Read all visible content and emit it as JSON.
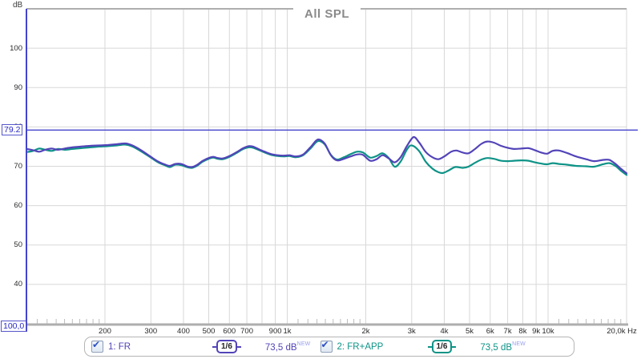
{
  "title": "All SPL",
  "colors": {
    "trace1": "#5244b8",
    "trace2": "#0e9387",
    "cursor": "#4444cf",
    "grid": "#d8d8d8",
    "minor_tick": "#bdbdbd",
    "border": "#aeaeae",
    "title_text": "#8a8a8a",
    "axis_text": "#2b2b2b",
    "new_flag": "#98a0ea"
  },
  "y_axis": {
    "unit": "dB",
    "ticks": [
      {
        "db": 100,
        "text": "100"
      },
      {
        "db": 90,
        "text": "90"
      },
      {
        "db": 80,
        "text": "80"
      },
      {
        "db": 70,
        "text": "70"
      },
      {
        "db": 60,
        "text": "60"
      },
      {
        "db": 50,
        "text": "50"
      },
      {
        "db": 40,
        "text": "40"
      }
    ]
  },
  "x_axis": {
    "ticks": [
      {
        "f": 200,
        "text": "200"
      },
      {
        "f": 300,
        "text": "300"
      },
      {
        "f": 400,
        "text": "400"
      },
      {
        "f": 500,
        "text": "500"
      },
      {
        "f": 600,
        "text": "600"
      },
      {
        "f": 700,
        "text": "700"
      },
      {
        "f": 900,
        "text": "900"
      },
      {
        "f": 1000,
        "text": "1k"
      },
      {
        "f": 2000,
        "text": "2k"
      },
      {
        "f": 3000,
        "text": "3k"
      },
      {
        "f": 4000,
        "text": "4k"
      },
      {
        "f": 5000,
        "text": "5k"
      },
      {
        "f": 6000,
        "text": "6k"
      },
      {
        "f": 7000,
        "text": "7k"
      },
      {
        "f": 8000,
        "text": "8k"
      },
      {
        "f": 9000,
        "text": "9k"
      },
      {
        "f": 10000,
        "text": "10k"
      },
      {
        "f": 20000,
        "text": "20,0k Hz"
      }
    ]
  },
  "cursor": {
    "level_label": "79.2",
    "freq_label": "100,0",
    "level_db": 79.2,
    "freq_hz": 100
  },
  "legend": {
    "entries": [
      {
        "label": "1: FR",
        "smoothing": "1/6",
        "value": "73,5 dB",
        "flag": "NEW",
        "color": "#5244b8",
        "checked": true
      },
      {
        "label": "2: FR+APP",
        "smoothing": "1/6",
        "value": "73,5 dB",
        "flag": "NEW",
        "color": "#0e9387",
        "checked": true
      }
    ]
  },
  "chart_data": {
    "type": "line",
    "xscale": "log",
    "xlabel": "Hz",
    "ylabel": "dB",
    "xlim": [
      100,
      20000
    ],
    "ylim": [
      30,
      110
    ],
    "grid": true,
    "x_gridlines": [
      200,
      300,
      400,
      500,
      600,
      700,
      800,
      900,
      1000,
      2000,
      3000,
      4000,
      5000,
      6000,
      7000,
      8000,
      9000,
      10000,
      20000
    ],
    "y_gridlines": [
      40,
      50,
      60,
      70,
      80,
      90,
      100
    ],
    "series": [
      {
        "name": "1: FR",
        "color": "#5244b8",
        "points": [
          [
            100,
            74.4
          ],
          [
            106,
            74.1
          ],
          [
            112,
            73.7
          ],
          [
            118,
            74.2
          ],
          [
            125,
            74.5
          ],
          [
            132,
            74.2
          ],
          [
            140,
            74.5
          ],
          [
            150,
            74.8
          ],
          [
            162,
            75.0
          ],
          [
            175,
            75.2
          ],
          [
            190,
            75.3
          ],
          [
            205,
            75.4
          ],
          [
            222,
            75.6
          ],
          [
            240,
            75.8
          ],
          [
            255,
            75.3
          ],
          [
            275,
            74.1
          ],
          [
            300,
            72.4
          ],
          [
            320,
            71.2
          ],
          [
            338,
            70.5
          ],
          [
            355,
            70.1
          ],
          [
            372,
            70.6
          ],
          [
            392,
            70.6
          ],
          [
            412,
            70.0
          ],
          [
            430,
            69.8
          ],
          [
            450,
            70.3
          ],
          [
            472,
            71.3
          ],
          [
            500,
            72.1
          ],
          [
            520,
            72.4
          ],
          [
            542,
            72.1
          ],
          [
            565,
            72.0
          ],
          [
            600,
            72.6
          ],
          [
            640,
            73.6
          ],
          [
            678,
            74.6
          ],
          [
            710,
            75.1
          ],
          [
            740,
            75.0
          ],
          [
            780,
            74.3
          ],
          [
            820,
            73.7
          ],
          [
            868,
            73.1
          ],
          [
            920,
            72.8
          ],
          [
            970,
            72.7
          ],
          [
            1020,
            72.8
          ],
          [
            1080,
            72.5
          ],
          [
            1150,
            73.0
          ],
          [
            1230,
            74.9
          ],
          [
            1310,
            76.8
          ],
          [
            1390,
            75.8
          ],
          [
            1470,
            72.8
          ],
          [
            1550,
            71.5
          ],
          [
            1650,
            71.9
          ],
          [
            1750,
            72.5
          ],
          [
            1850,
            73.0
          ],
          [
            1950,
            72.9
          ],
          [
            2080,
            71.4
          ],
          [
            2200,
            71.8
          ],
          [
            2320,
            72.8
          ],
          [
            2450,
            72.0
          ],
          [
            2580,
            71.0
          ],
          [
            2720,
            72.3
          ],
          [
            2880,
            75.2
          ],
          [
            3050,
            77.4
          ],
          [
            3200,
            76.1
          ],
          [
            3400,
            73.6
          ],
          [
            3600,
            72.3
          ],
          [
            3800,
            71.8
          ],
          [
            4000,
            72.5
          ],
          [
            4250,
            73.7
          ],
          [
            4450,
            74.0
          ],
          [
            4700,
            73.5
          ],
          [
            4950,
            73.3
          ],
          [
            5250,
            74.4
          ],
          [
            5550,
            75.7
          ],
          [
            5850,
            76.3
          ],
          [
            6200,
            76.0
          ],
          [
            6600,
            75.2
          ],
          [
            7000,
            74.7
          ],
          [
            7400,
            74.4
          ],
          [
            7900,
            74.5
          ],
          [
            8400,
            74.6
          ],
          [
            8900,
            74.1
          ],
          [
            9400,
            73.5
          ],
          [
            9900,
            73.2
          ],
          [
            10400,
            73.9
          ],
          [
            11000,
            74.0
          ],
          [
            11800,
            73.4
          ],
          [
            12800,
            72.5
          ],
          [
            14000,
            71.8
          ],
          [
            15000,
            71.3
          ],
          [
            16200,
            71.6
          ],
          [
            17200,
            71.6
          ],
          [
            18200,
            70.5
          ],
          [
            19000,
            69.4
          ],
          [
            20000,
            68.2
          ]
        ]
      },
      {
        "name": "2: FR+APP",
        "color": "#0e9387",
        "points": [
          [
            100,
            73.6
          ],
          [
            106,
            73.9
          ],
          [
            112,
            74.5
          ],
          [
            118,
            74.2
          ],
          [
            125,
            73.9
          ],
          [
            132,
            74.4
          ],
          [
            140,
            74.2
          ],
          [
            150,
            74.4
          ],
          [
            162,
            74.6
          ],
          [
            175,
            74.8
          ],
          [
            190,
            75.0
          ],
          [
            205,
            75.1
          ],
          [
            222,
            75.3
          ],
          [
            240,
            75.5
          ],
          [
            255,
            75.0
          ],
          [
            275,
            73.8
          ],
          [
            300,
            72.2
          ],
          [
            320,
            71.0
          ],
          [
            338,
            70.3
          ],
          [
            355,
            69.8
          ],
          [
            372,
            70.4
          ],
          [
            392,
            70.3
          ],
          [
            412,
            69.8
          ],
          [
            430,
            69.6
          ],
          [
            450,
            70.1
          ],
          [
            472,
            71.1
          ],
          [
            500,
            71.9
          ],
          [
            520,
            72.2
          ],
          [
            542,
            71.9
          ],
          [
            565,
            71.8
          ],
          [
            600,
            72.4
          ],
          [
            640,
            73.4
          ],
          [
            678,
            74.4
          ],
          [
            710,
            74.8
          ],
          [
            740,
            74.7
          ],
          [
            780,
            74.1
          ],
          [
            820,
            73.5
          ],
          [
            868,
            72.9
          ],
          [
            920,
            72.6
          ],
          [
            970,
            72.5
          ],
          [
            1020,
            72.6
          ],
          [
            1080,
            72.3
          ],
          [
            1150,
            72.8
          ],
          [
            1230,
            74.6
          ],
          [
            1310,
            76.4
          ],
          [
            1390,
            75.6
          ],
          [
            1470,
            72.9
          ],
          [
            1550,
            71.7
          ],
          [
            1650,
            72.3
          ],
          [
            1750,
            73.1
          ],
          [
            1850,
            73.7
          ],
          [
            1950,
            73.5
          ],
          [
            2080,
            72.2
          ],
          [
            2200,
            72.6
          ],
          [
            2320,
            73.3
          ],
          [
            2450,
            72.1
          ],
          [
            2580,
            69.9
          ],
          [
            2720,
            71.2
          ],
          [
            2880,
            74.3
          ],
          [
            3000,
            75.3
          ],
          [
            3200,
            73.9
          ],
          [
            3400,
            71.1
          ],
          [
            3600,
            69.4
          ],
          [
            3800,
            68.5
          ],
          [
            3950,
            68.3
          ],
          [
            4150,
            68.9
          ],
          [
            4400,
            69.8
          ],
          [
            4700,
            69.6
          ],
          [
            4950,
            69.9
          ],
          [
            5250,
            70.9
          ],
          [
            5550,
            71.7
          ],
          [
            5850,
            72.1
          ],
          [
            6200,
            71.9
          ],
          [
            6600,
            71.4
          ],
          [
            7000,
            71.3
          ],
          [
            7400,
            71.4
          ],
          [
            7900,
            71.5
          ],
          [
            8400,
            71.4
          ],
          [
            8900,
            71.0
          ],
          [
            9400,
            70.7
          ],
          [
            9900,
            70.5
          ],
          [
            10400,
            70.8
          ],
          [
            11000,
            70.6
          ],
          [
            11800,
            70.4
          ],
          [
            12800,
            70.1
          ],
          [
            14000,
            70.0
          ],
          [
            15000,
            69.9
          ],
          [
            16200,
            70.5
          ],
          [
            17200,
            70.8
          ],
          [
            18200,
            70.0
          ],
          [
            19000,
            68.9
          ],
          [
            20000,
            67.8
          ]
        ]
      }
    ]
  }
}
